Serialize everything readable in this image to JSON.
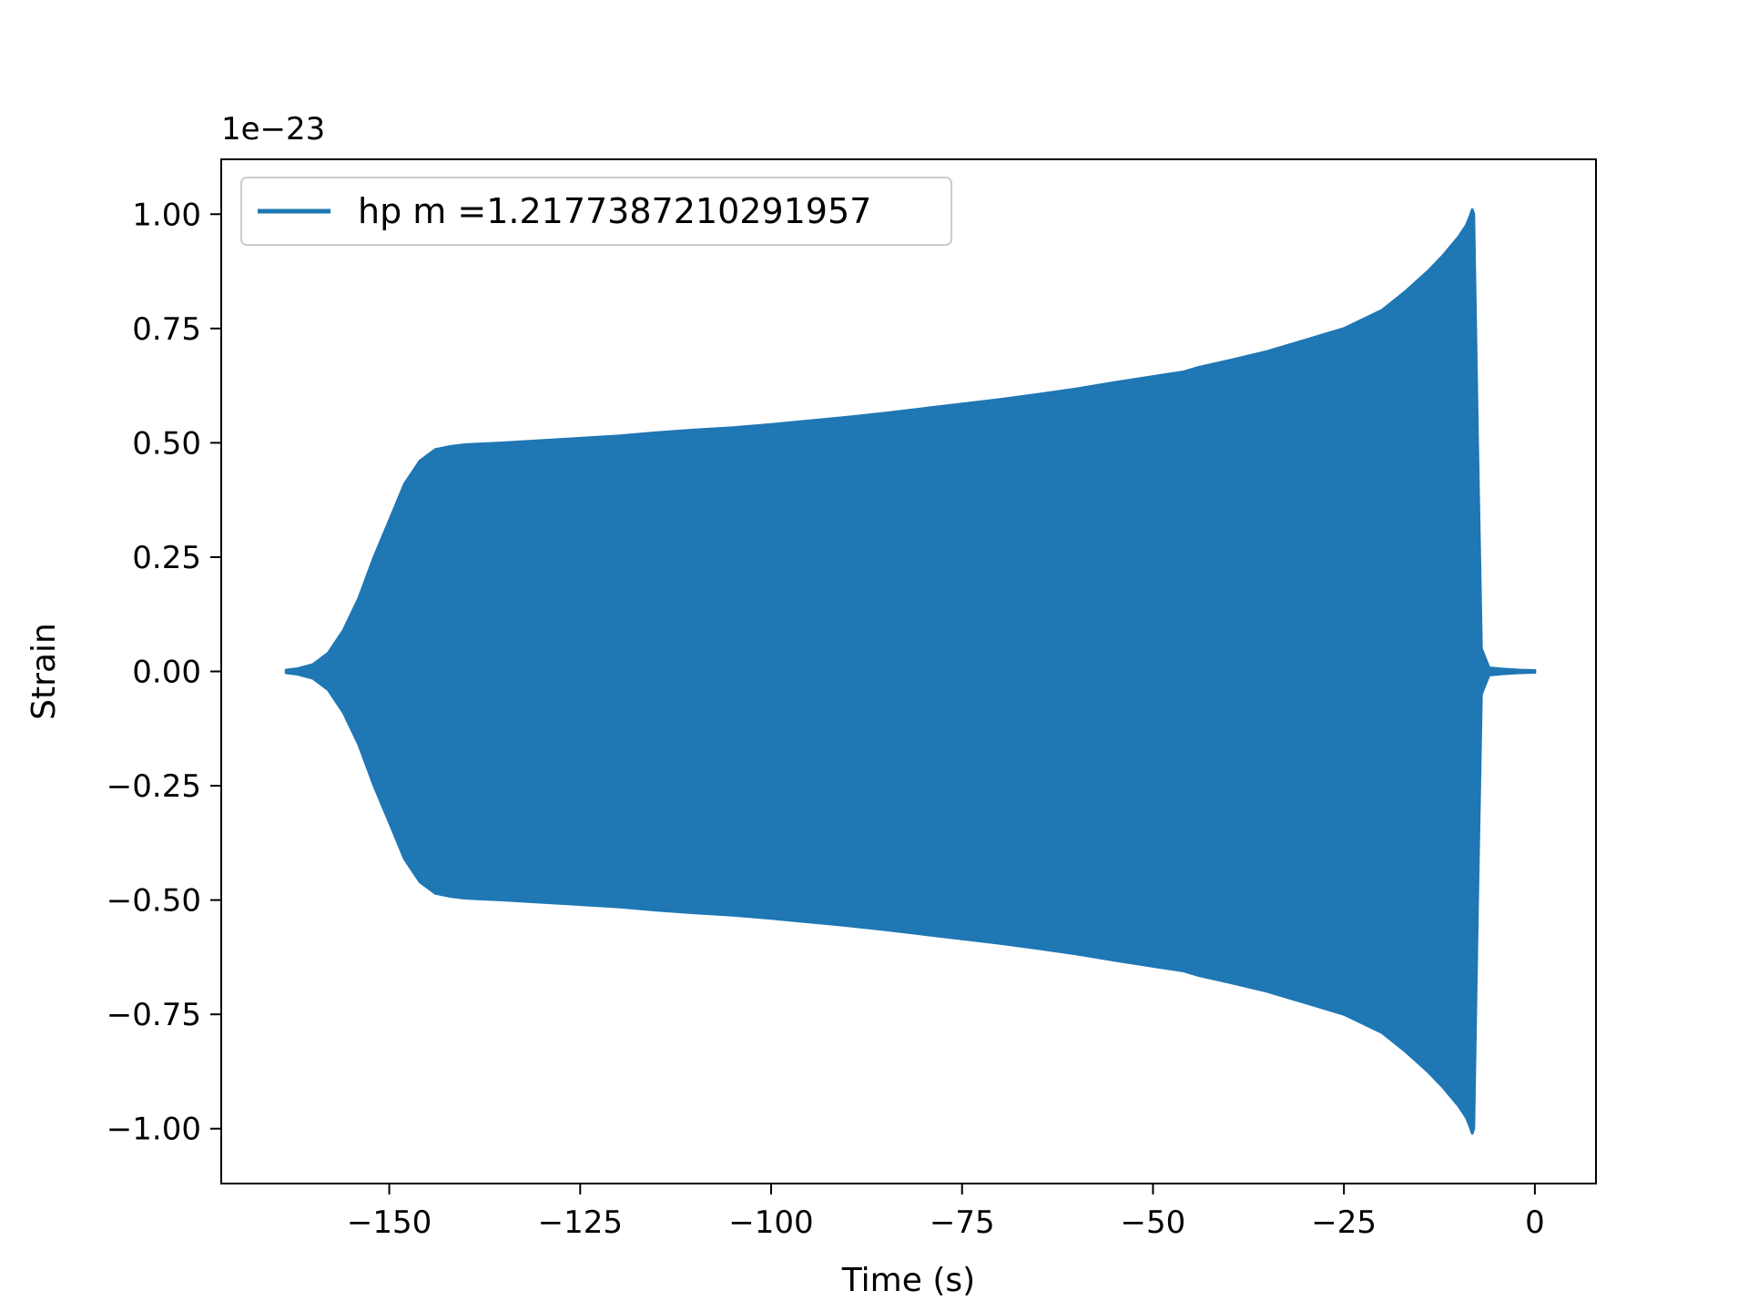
{
  "chart_data": {
    "type": "area",
    "xlabel": "Time (s)",
    "ylabel": "Strain",
    "scale_note": "1e−23",
    "xlim": [
      -172,
      8
    ],
    "ylim": [
      -1.12,
      1.12
    ],
    "xticks": [
      -150,
      -125,
      -100,
      -75,
      -50,
      -25,
      0
    ],
    "xtick_labels": [
      "−150",
      "−125",
      "−100",
      "−75",
      "−50",
      "−25",
      "0"
    ],
    "yticks": [
      1.0,
      0.75,
      0.5,
      0.25,
      0.0,
      -0.25,
      -0.5,
      -0.75,
      -1.0
    ],
    "ytick_labels": [
      "1.00",
      "0.75",
      "0.50",
      "0.25",
      "0.00",
      "−0.25",
      "−0.50",
      "−0.75",
      "−1.00"
    ],
    "grid": false,
    "legend_position": "top-left",
    "series": [
      {
        "name": "hp m =1.2177387210291957",
        "color": "#1f77b4",
        "x": [
          -163.5,
          -162,
          -160,
          -158,
          -156,
          -154,
          -152,
          -150,
          -148,
          -146,
          -144,
          -142,
          -140,
          -135,
          -130,
          -125,
          -120,
          -115,
          -110,
          -105,
          -100,
          -95,
          -90,
          -85,
          -80,
          -75,
          -70,
          -65,
          -60,
          -55,
          -50,
          -46,
          -44,
          -40,
          -35,
          -30,
          -25,
          -20,
          -17,
          -14,
          -12,
          -10,
          -9,
          -8.5,
          -8.2,
          -8,
          -7.5,
          -7,
          -6,
          -4,
          -2,
          0
        ],
        "upper": [
          0.003,
          0.006,
          0.015,
          0.04,
          0.09,
          0.16,
          0.25,
          0.33,
          0.41,
          0.46,
          0.485,
          0.492,
          0.496,
          0.5,
          0.505,
          0.51,
          0.515,
          0.522,
          0.528,
          0.533,
          0.54,
          0.548,
          0.556,
          0.565,
          0.575,
          0.585,
          0.595,
          0.606,
          0.618,
          0.632,
          0.645,
          0.655,
          0.665,
          0.68,
          0.7,
          0.725,
          0.75,
          0.79,
          0.83,
          0.875,
          0.91,
          0.95,
          0.975,
          0.995,
          1.01,
          1.0,
          0.5,
          0.05,
          0.008,
          0.005,
          0.003,
          0.002
        ],
        "lower": [
          -0.003,
          -0.006,
          -0.015,
          -0.04,
          -0.09,
          -0.16,
          -0.25,
          -0.33,
          -0.41,
          -0.46,
          -0.485,
          -0.492,
          -0.496,
          -0.5,
          -0.505,
          -0.51,
          -0.515,
          -0.522,
          -0.528,
          -0.533,
          -0.54,
          -0.548,
          -0.556,
          -0.565,
          -0.575,
          -0.585,
          -0.595,
          -0.606,
          -0.618,
          -0.632,
          -0.645,
          -0.655,
          -0.665,
          -0.68,
          -0.7,
          -0.725,
          -0.75,
          -0.79,
          -0.83,
          -0.875,
          -0.91,
          -0.95,
          -0.975,
          -0.995,
          -1.01,
          -1.0,
          -0.5,
          -0.05,
          -0.008,
          -0.005,
          -0.003,
          -0.002
        ]
      }
    ]
  }
}
